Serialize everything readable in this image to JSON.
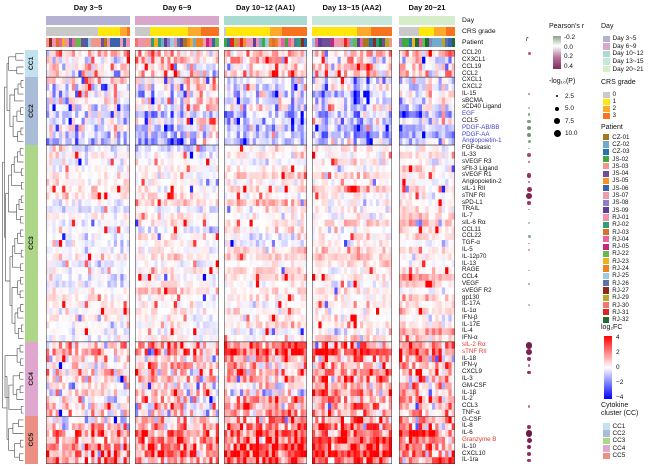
{
  "dot_column_header": "r",
  "annotation_rows": [
    "Day",
    "CRS grade",
    "Patient"
  ],
  "chart_data": {
    "type": "heatmap",
    "col_groups": [
      {
        "label": "Day 3~5",
        "day_color": "#b4b1d2",
        "n_cols": 26,
        "crs_fractions": [
          0.62,
          0.26,
          0.08,
          0.04
        ]
      },
      {
        "label": "Day 6~9",
        "day_color": "#d9a7cc",
        "n_cols": 26,
        "crs_fractions": [
          0.18,
          0.45,
          0.15,
          0.22
        ]
      },
      {
        "label": "Day 10~12 (AA1)",
        "day_color": "#a9dbd1",
        "n_cols": 26,
        "crs_fractions": [
          0.03,
          0.53,
          0.14,
          0.3
        ]
      },
      {
        "label": "Day 13~15 (AA2)",
        "day_color": "#c6e7d9",
        "n_cols": 25,
        "crs_fractions": [
          0.0,
          0.56,
          0.18,
          0.26
        ]
      },
      {
        "label": "Day 20~21",
        "day_color": "#d6edca",
        "n_cols": 17,
        "crs_fractions": [
          0.36,
          0.26,
          0.22,
          0.16
        ]
      }
    ],
    "clusters": [
      {
        "id": "CC1",
        "color": "#c3e2ef"
      },
      {
        "id": "CC2",
        "color": "#a9bcd8"
      },
      {
        "id": "CC3",
        "color": "#aed688"
      },
      {
        "id": "CC4",
        "color": "#e0a7ce"
      },
      {
        "id": "CC5",
        "color": "#ec8f85"
      }
    ],
    "rows": [
      {
        "name": "CCL20",
        "cluster": "CC1",
        "bias": 0.6,
        "dot": {
          "d": 3.0,
          "color": "#b05687"
        }
      },
      {
        "name": "CX3CL1",
        "cluster": "CC1",
        "bias": 0.0,
        "dot": null
      },
      {
        "name": "CCL19",
        "cluster": "CC1",
        "bias": 0.0,
        "dot": null
      },
      {
        "name": "CCL2",
        "cluster": "CC1",
        "bias": 0.0,
        "dot": null
      },
      {
        "name": "CXCL1",
        "cluster": "CC2",
        "bias": 0.35,
        "dot": null
      },
      {
        "name": "CXCL2",
        "cluster": "CC2",
        "bias": 0.3,
        "dot": null
      },
      {
        "name": "IL-15",
        "cluster": "CC2",
        "bias": 0.0,
        "dot": {
          "d": 1.4,
          "color": "#c98bac"
        }
      },
      {
        "name": "sBCMA",
        "cluster": "CC2",
        "bias": 0.0,
        "dot": null
      },
      {
        "name": "sCD40 Ligand",
        "cluster": "CC2",
        "bias": 0.0,
        "dot": {
          "d": 2.3,
          "color": "#9bb89b"
        }
      },
      {
        "name": "EGF",
        "cluster": "CC2",
        "label_color": "#4040cc",
        "bias": -0.3,
        "dot": {
          "d": 2.8,
          "color": "#84a884"
        }
      },
      {
        "name": "CCL5",
        "cluster": "CC2",
        "bias": -0.15,
        "dot": {
          "d": 3.4,
          "color": "#78a178"
        }
      },
      {
        "name": "PDGF-AB/BB",
        "cluster": "CC2",
        "label_color": "#4040cc",
        "bias": -0.35,
        "dot": {
          "d": 4.0,
          "color": "#6d986d"
        }
      },
      {
        "name": "PDGF-AA",
        "cluster": "CC2",
        "label_color": "#4040cc",
        "bias": -0.35,
        "dot": {
          "d": 4.0,
          "color": "#6d986d"
        }
      },
      {
        "name": "Angiopoietin-1",
        "cluster": "CC2",
        "label_color": "#4040cc",
        "bias": -0.3,
        "dot": {
          "d": 3.0,
          "color": "#7fa67f"
        }
      },
      {
        "name": "FGF-basic",
        "cluster": "CC3",
        "bias": 0.0,
        "dot": {
          "d": 1.6,
          "color": "#a3bda3"
        }
      },
      {
        "name": "IL-33",
        "cluster": "CC3",
        "bias": 0.1,
        "dot": {
          "d": 3.7,
          "color": "#a04a78"
        }
      },
      {
        "name": "sVEGF R3",
        "cluster": "CC3",
        "bias": 0.0,
        "dot": {
          "d": 1.7,
          "color": "#b56e95"
        }
      },
      {
        "name": "sFlt-3 Ligand",
        "cluster": "CC3",
        "bias": 0.0,
        "dot": null
      },
      {
        "name": "sVEGF R1",
        "cluster": "CC3",
        "bias": 0.1,
        "dot": {
          "d": 4.7,
          "color": "#93325f"
        }
      },
      {
        "name": "Angiopoietin-2",
        "cluster": "CC3",
        "bias": 0.1,
        "dot": {
          "d": 2.2,
          "color": "#b3638e"
        }
      },
      {
        "name": "sIL-1 RII",
        "cluster": "CC3",
        "bias": 0.1,
        "dot": {
          "d": 5.0,
          "color": "#8e2c5d"
        }
      },
      {
        "name": "sTNF RI",
        "cluster": "CC3",
        "bias": 0.2,
        "dot": {
          "d": 6.7,
          "color": "#7d2250"
        }
      },
      {
        "name": "sPD-L1",
        "cluster": "CC3",
        "bias": 0.1,
        "dot": {
          "d": 3.7,
          "color": "#98396a"
        }
      },
      {
        "name": "TRAIL",
        "cluster": "CC3",
        "bias": 0.0,
        "dot": {
          "d": 1.6,
          "color": "#c285a8"
        }
      },
      {
        "name": "IL-7",
        "cluster": "CC3",
        "bias": 0.0,
        "dot": null
      },
      {
        "name": "sIL-6 Rα",
        "cluster": "CC3",
        "bias": 0.0,
        "dot": {
          "d": 1.7,
          "color": "#a8c0a8"
        }
      },
      {
        "name": "CCL11",
        "cluster": "CC3",
        "bias": 0.0,
        "dot": null
      },
      {
        "name": "CCL22",
        "cluster": "CC3",
        "bias": 0.0,
        "dot": {
          "d": 3.0,
          "color": "#85ab85"
        }
      },
      {
        "name": "TGF-α",
        "cluster": "CC3",
        "bias": 0.0,
        "dot": {
          "d": 1.5,
          "color": "#cf9ab8"
        }
      },
      {
        "name": "IL-5",
        "cluster": "CC3",
        "bias": 0.0,
        "dot": {
          "d": 1.5,
          "color": "#cf9ab8"
        }
      },
      {
        "name": "IL-12p70",
        "cluster": "CC3",
        "bias": 0.0,
        "dot": null
      },
      {
        "name": "IL-13",
        "cluster": "CC3",
        "bias": 0.0,
        "dot": null
      },
      {
        "name": "RAGE",
        "cluster": "CC3",
        "bias": 0.0,
        "dot": {
          "d": 1.7,
          "color": "#9fba9f"
        }
      },
      {
        "name": "CCL4",
        "cluster": "CC3",
        "bias": 0.0,
        "dot": null
      },
      {
        "name": "VEGF",
        "cluster": "CC3",
        "bias": 0.0,
        "dot": {
          "d": 2.6,
          "color": "#8fb08f"
        }
      },
      {
        "name": "sVEGF R2",
        "cluster": "CC3",
        "bias": 0.0,
        "dot": null
      },
      {
        "name": "gp130",
        "cluster": "CC3",
        "bias": 0.0,
        "dot": null
      },
      {
        "name": "IL-17A",
        "cluster": "CC3",
        "bias": 0.0,
        "dot": {
          "d": 2.0,
          "color": "#9bb89b"
        }
      },
      {
        "name": "IL-1α",
        "cluster": "CC3",
        "bias": 0.0,
        "dot": null
      },
      {
        "name": "IFN-β",
        "cluster": "CC3",
        "bias": 0.0,
        "dot": null
      },
      {
        "name": "IL-17E",
        "cluster": "CC3",
        "bias": 0.0,
        "dot": null
      },
      {
        "name": "IL-4",
        "cluster": "CC3",
        "bias": 0.0,
        "dot": null
      },
      {
        "name": "IFN-α",
        "cluster": "CC3",
        "bias": 0.0,
        "dot": null
      },
      {
        "name": "sIL-2 Rα",
        "cluster": "CC4",
        "label_color": "#e03a2f",
        "bias": 1.0,
        "dot": {
          "d": 6.7,
          "color": "#771d4c"
        }
      },
      {
        "name": "sTNF RII",
        "cluster": "CC4",
        "label_color": "#e03a2f",
        "bias": 1.0,
        "dot": {
          "d": 6.0,
          "color": "#7d2250"
        }
      },
      {
        "name": "IL-18",
        "cluster": "CC4",
        "bias": 0.35,
        "dot": {
          "d": 4.0,
          "color": "#8e2c5d"
        }
      },
      {
        "name": "IFN-γ",
        "cluster": "CC4",
        "bias": 0.25,
        "dot": {
          "d": 2.7,
          "color": "#b3638e"
        }
      },
      {
        "name": "CXCL9",
        "cluster": "CC4",
        "bias": 0.4,
        "dot": {
          "d": 3.7,
          "color": "#93325f"
        }
      },
      {
        "name": "IL-3",
        "cluster": "CC4",
        "bias": -0.2,
        "dot": null
      },
      {
        "name": "GM-CSF",
        "cluster": "CC4",
        "bias": 0.0,
        "dot": null
      },
      {
        "name": "IL-1β",
        "cluster": "CC4",
        "bias": 0.0,
        "dot": null
      },
      {
        "name": "IL-2",
        "cluster": "CC4",
        "bias": 0.0,
        "dot": null
      },
      {
        "name": "CCL3",
        "cluster": "CC4",
        "bias": 0.25,
        "dot": {
          "d": 2.7,
          "color": "#bb6f97"
        }
      },
      {
        "name": "TNF-α",
        "cluster": "CC4",
        "bias": 0.0,
        "dot": null
      },
      {
        "name": "G-CSF",
        "cluster": "CC5",
        "bias": -0.1,
        "dot": null
      },
      {
        "name": "IL-8",
        "cluster": "CC5",
        "bias": 0.3,
        "dot": {
          "d": 3.7,
          "color": "#93325f"
        }
      },
      {
        "name": "IL-6",
        "cluster": "CC5",
        "bias": 0.9,
        "dot": {
          "d": 6.7,
          "color": "#6f1846"
        }
      },
      {
        "name": "Granzyme B",
        "cluster": "CC5",
        "label_color": "#e03a2f",
        "bias": 0.55,
        "dot": {
          "d": 5.0,
          "color": "#7d2250"
        }
      },
      {
        "name": "IL-10",
        "cluster": "CC5",
        "bias": 0.55,
        "dot": {
          "d": 4.7,
          "color": "#86275a"
        }
      },
      {
        "name": "CXCL10",
        "cluster": "CC5",
        "bias": 0.65,
        "dot": {
          "d": 4.3,
          "color": "#8e2c5d"
        }
      },
      {
        "name": "IL-1ra",
        "cluster": "CC5",
        "bias": 0.25,
        "dot": {
          "d": 3.7,
          "color": "#98396a"
        }
      }
    ],
    "cell_model": {
      "seed": 1337,
      "means": {
        "CC1": [
          0.35,
          0.55,
          0.8,
          0.5,
          0.25
        ],
        "CC2": [
          -0.05,
          -0.4,
          -0.7,
          -0.7,
          -0.45
        ],
        "CC3": [
          0.0,
          0.05,
          0.22,
          0.28,
          0.18
        ],
        "CC4": [
          0.2,
          0.55,
          1.05,
          1.15,
          0.75
        ],
        "CC5": [
          0.5,
          0.95,
          1.6,
          1.75,
          1.1
        ]
      },
      "sds": {
        "CC1": 1.1,
        "CC2": 0.85,
        "CC3": 0.5,
        "CC4": 1.2,
        "CC5": 1.3
      },
      "col_weight": {
        "CC1": 0.5,
        "CC2": 1.2,
        "CC3": 0.35,
        "CC4": 0.5,
        "CC5": 0.5
      },
      "col_sign": {
        "CC1": 1,
        "CC2": -1,
        "CC3": 1,
        "CC4": 1,
        "CC5": 1
      },
      "row_block_sd": 0.35,
      "outlier_rate": 0.05,
      "value_range": [
        -4,
        4
      ]
    },
    "colormap": {
      "positive": "#ff0000",
      "negative": "#0000ff",
      "zero": "#ffffff",
      "saturate_at": 3.2,
      "gamma": 1.25
    },
    "legends": {
      "pearson": {
        "title": "Pearson's r",
        "ticks": [
          "-0.2",
          "0.0",
          "0.2",
          "0.4"
        ],
        "gradient": [
          "#87a383",
          "#ffffff",
          "#b5739c",
          "#822a5c"
        ]
      },
      "logp": {
        "title": "-log₁₀(P)",
        "items": [
          {
            "label": "2.5",
            "d": 2.5
          },
          {
            "label": "5.0",
            "d": 4.2
          },
          {
            "label": "7.5",
            "d": 5.6
          },
          {
            "label": "10.0",
            "d": 7.0
          }
        ]
      },
      "day": {
        "title": "Day",
        "items": [
          {
            "label": "Day 3~5",
            "color": "#b4b1d2"
          },
          {
            "label": "Day 6~9",
            "color": "#d9a7cc"
          },
          {
            "label": "Day 10~12",
            "color": "#a9dbd1"
          },
          {
            "label": "Day 13~15",
            "color": "#c6e7d9"
          },
          {
            "label": "Day 20~21",
            "color": "#d6edca"
          }
        ]
      },
      "crs": {
        "title": "CRS grade",
        "items": [
          {
            "label": "0",
            "color": "#c9c9c9"
          },
          {
            "label": "1",
            "color": "#ffe70c"
          },
          {
            "label": "2",
            "color": "#fea82c"
          },
          {
            "label": "3",
            "color": "#f8731d"
          }
        ]
      },
      "patient": {
        "title": "Patient",
        "items": [
          {
            "label": "CZ-01",
            "color": "#a6791f"
          },
          {
            "label": "CZ-02",
            "color": "#72aacc"
          },
          {
            "label": "CZ-03",
            "color": "#2474b5"
          },
          {
            "label": "JS-02",
            "color": "#3fa93f"
          },
          {
            "label": "JS-03",
            "color": "#f2958d"
          },
          {
            "label": "JS-04",
            "color": "#6f4e9c"
          },
          {
            "label": "JS-05",
            "color": "#f59322"
          },
          {
            "label": "JS-06",
            "color": "#3a63ad"
          },
          {
            "label": "JS-07",
            "color": "#f09ab0"
          },
          {
            "label": "JS-08",
            "color": "#8f7ec2"
          },
          {
            "label": "JS-09",
            "color": "#5f3e99"
          },
          {
            "label": "RJ-01",
            "color": "#ef93ac"
          },
          {
            "label": "RJ-02",
            "color": "#2e9e77"
          },
          {
            "label": "RJ-03",
            "color": "#d96f2a"
          },
          {
            "label": "RJ-04",
            "color": "#ee5fa0"
          },
          {
            "label": "RJ-05",
            "color": "#c9257f"
          },
          {
            "label": "RJ-22",
            "color": "#66bb4e"
          },
          {
            "label": "RJ-23",
            "color": "#edb120"
          },
          {
            "label": "RJ-24",
            "color": "#ef8123"
          },
          {
            "label": "RJ-25",
            "color": "#9ecae1"
          },
          {
            "label": "RJ-26",
            "color": "#5a74a8"
          },
          {
            "label": "RJ-27",
            "color": "#8c2a1c"
          },
          {
            "label": "RJ-29",
            "color": "#b8a826"
          },
          {
            "label": "RJ-30",
            "color": "#f2766f"
          },
          {
            "label": "RJ-31",
            "color": "#e02424"
          },
          {
            "label": "RJ-32",
            "color": "#1e6e34"
          }
        ]
      },
      "log2fc": {
        "title": "log₂FC",
        "ticks": [
          "4",
          "2",
          "0",
          "−2",
          "−4"
        ]
      },
      "cc": {
        "title_lines": [
          "Cytokine",
          "cluster (CC)"
        ],
        "items": [
          {
            "label": "CC1",
            "color": "#c3e2ef"
          },
          {
            "label": "CC2",
            "color": "#a9bcd8"
          },
          {
            "label": "CC3",
            "color": "#aed688"
          },
          {
            "label": "CC4",
            "color": "#e0a7ce"
          },
          {
            "label": "CC5",
            "color": "#ec8f85"
          }
        ]
      }
    }
  }
}
